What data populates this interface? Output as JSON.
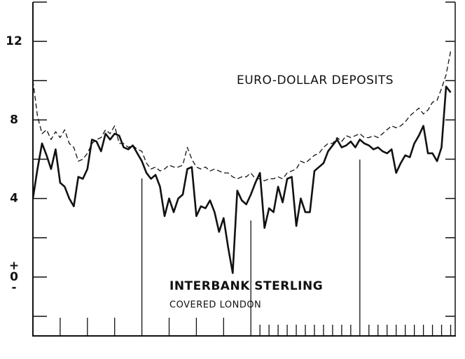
{
  "chart_data": {
    "type": "line",
    "annotations": {
      "euro": "EURO-DOLLAR DEPOSITS",
      "sterling": "INTERBANK STERLING",
      "covered": "COVERED LONDON"
    },
    "xlim": [
      0,
      46.5
    ],
    "ylim": [
      -3,
      14
    ],
    "yticks": [
      0,
      4,
      8,
      12
    ],
    "minor_yticks": [
      -2,
      2,
      6,
      10,
      14
    ],
    "zero_signs": {
      "above": "+",
      "below": "-"
    },
    "xticks": [
      3,
      6,
      9,
      15,
      18,
      21,
      25,
      26,
      27,
      28,
      29,
      30,
      31,
      32,
      33,
      34,
      35,
      37,
      38,
      39,
      40,
      41,
      42,
      43,
      44,
      45,
      46
    ],
    "year_dividers": [
      12,
      24,
      36
    ],
    "x": [
      0,
      0.5,
      1,
      1.5,
      2,
      2.5,
      3,
      3.5,
      4,
      4.5,
      5,
      5.5,
      6,
      6.5,
      7,
      7.5,
      8,
      8.5,
      9,
      9.5,
      10,
      10.5,
      11,
      11.5,
      12,
      12.5,
      13,
      13.5,
      14,
      14.5,
      15,
      15.5,
      16,
      16.5,
      17,
      17.5,
      18,
      18.5,
      19,
      19.5,
      20,
      20.5,
      21,
      21.5,
      22,
      22.5,
      23,
      23.5,
      24,
      24.5,
      25,
      25.5,
      26,
      26.5,
      27,
      27.5,
      28,
      28.5,
      29,
      29.5,
      30,
      30.5,
      31,
      31.5,
      32,
      32.5,
      33,
      33.5,
      34,
      34.5,
      35,
      35.5,
      36,
      36.5,
      37,
      37.5,
      38,
      38.5,
      39,
      39.5,
      40,
      40.5,
      41,
      41.5,
      42,
      42.5,
      43,
      43.5,
      44,
      44.5,
      45,
      45.5,
      46
    ],
    "series": [
      {
        "name": "Interbank sterling covered London",
        "color": "#111",
        "dash": false,
        "width": 2.6,
        "values": [
          4.0,
          5.5,
          6.8,
          6.2,
          5.5,
          6.5,
          4.8,
          4.6,
          4.0,
          3.6,
          5.1,
          5.0,
          5.5,
          7.0,
          6.9,
          6.4,
          7.3,
          7.0,
          7.3,
          7.2,
          6.6,
          6.5,
          6.7,
          6.3,
          5.9,
          5.3,
          5.0,
          5.2,
          4.6,
          3.1,
          4.0,
          3.3,
          4.0,
          4.2,
          5.5,
          5.6,
          3.1,
          3.6,
          3.5,
          3.9,
          3.3,
          2.3,
          3.0,
          1.5,
          0.2,
          4.4,
          3.9,
          3.7,
          4.2,
          4.8,
          5.3,
          2.5,
          3.5,
          3.3,
          4.6,
          3.8,
          5.0,
          5.1,
          2.6,
          4.0,
          3.3,
          3.3,
          5.4,
          5.6,
          5.8,
          6.4,
          6.7,
          7.0,
          6.6,
          6.7,
          6.9,
          6.6,
          7.0,
          6.8,
          6.7,
          6.5,
          6.6,
          6.4,
          6.3,
          6.5,
          5.3,
          5.8,
          6.2,
          6.1,
          6.8,
          7.2,
          7.7,
          6.3,
          6.3,
          5.9,
          6.6,
          9.7,
          9.4
        ]
      },
      {
        "name": "Euro-dollar deposits",
        "color": "#111",
        "dash": true,
        "width": 1.3,
        "values": [
          10.0,
          8.2,
          7.3,
          7.5,
          7.0,
          7.4,
          7.1,
          7.5,
          6.8,
          6.6,
          5.9,
          6.0,
          6.3,
          6.8,
          7.0,
          7.1,
          7.5,
          7.3,
          7.7,
          6.8,
          6.8,
          6.6,
          6.7,
          6.5,
          6.4,
          5.8,
          5.5,
          5.6,
          5.4,
          5.5,
          5.7,
          5.6,
          5.6,
          5.7,
          6.6,
          6.0,
          5.6,
          5.5,
          5.6,
          5.4,
          5.5,
          5.4,
          5.3,
          5.3,
          5.1,
          5.0,
          5.1,
          5.1,
          5.3,
          5.0,
          5.0,
          4.9,
          5.0,
          5.0,
          5.1,
          5.0,
          5.3,
          5.4,
          5.5,
          5.9,
          5.8,
          6.0,
          6.2,
          6.3,
          6.6,
          6.8,
          6.8,
          7.1,
          6.9,
          7.2,
          7.1,
          7.2,
          7.3,
          7.1,
          7.1,
          7.2,
          7.1,
          7.3,
          7.5,
          7.7,
          7.6,
          7.7,
          7.9,
          8.2,
          8.4,
          8.6,
          8.3,
          8.5,
          8.9,
          9.0,
          9.6,
          10.3,
          11.5
        ]
      }
    ]
  }
}
